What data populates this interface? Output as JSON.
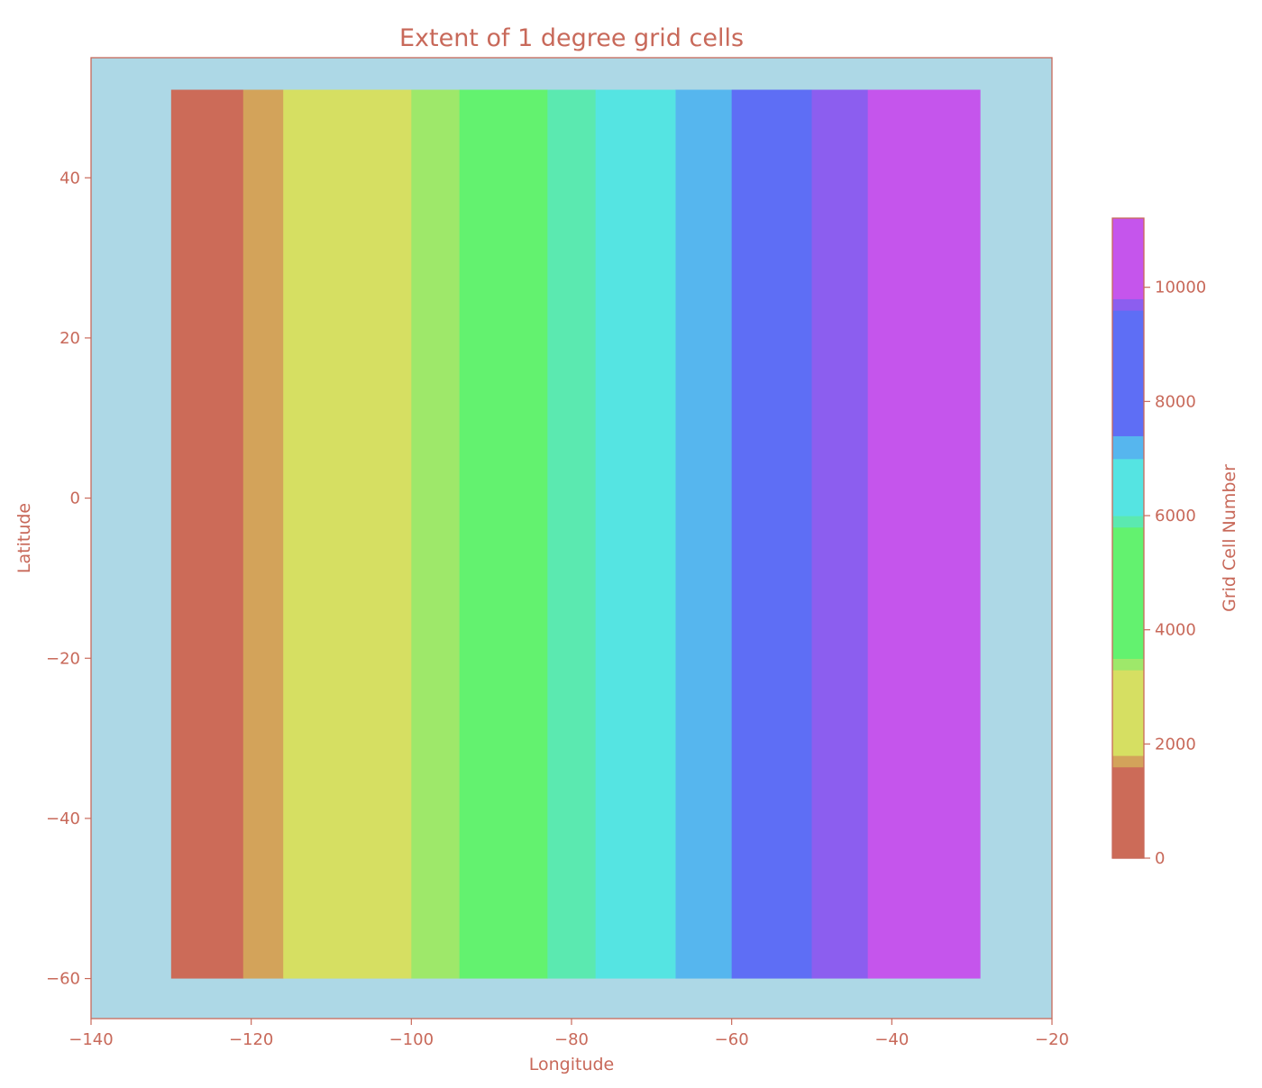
{
  "chart_data": {
    "type": "heatmap",
    "title": "Extent of 1 degree grid cells",
    "xlabel": "Longitude",
    "ylabel": "Latitude",
    "xlim": [
      -140,
      -20
    ],
    "ylim": [
      -65,
      55
    ],
    "xticks": [
      -140,
      -120,
      -100,
      -80,
      -60,
      -40,
      -20
    ],
    "yticks": [
      -60,
      -40,
      -20,
      0,
      20,
      40
    ],
    "xtick_labels": [
      "−140",
      "−120",
      "−100",
      "−80",
      "−60",
      "−40",
      "−20"
    ],
    "ytick_labels": [
      "−60",
      "−40",
      "−20",
      "0",
      "20",
      "40"
    ],
    "grid": false,
    "background_color": "#add8e6",
    "text_color": "#c8695a",
    "grid_extent": {
      "lon_min": -130,
      "lon_max": -29,
      "lat_min": -60,
      "lat_max": 51
    },
    "cells_per_degree_lon": 111,
    "value_range": [
      0,
      11211
    ],
    "colorbar": {
      "label": "Grid Cell Number",
      "ticks": [
        0,
        2000,
        4000,
        6000,
        8000,
        10000
      ],
      "tick_labels": [
        "0",
        "2000",
        "4000",
        "6000",
        "8000",
        "10000"
      ],
      "vmin": 0,
      "vmax": 11211
    },
    "color_bands": [
      {
        "lon_min": -130,
        "lon_max": -121,
        "value_min": 0,
        "value_max": 1000,
        "color": "#cc6b58"
      },
      {
        "lon_min": -121,
        "lon_max": -116,
        "value_min": 1000,
        "value_max": 1550,
        "color": "#d3a35a"
      },
      {
        "lon_min": -116,
        "lon_max": -100,
        "value_min": 1550,
        "value_max": 3330,
        "color": "#d6df62"
      },
      {
        "lon_min": -100,
        "lon_max": -94,
        "value_min": 3330,
        "value_max": 4000,
        "color": "#9ee86a"
      },
      {
        "lon_min": -94,
        "lon_max": -83,
        "value_min": 4000,
        "value_max": 5220,
        "color": "#63f26f"
      },
      {
        "lon_min": -83,
        "lon_max": -77,
        "value_min": 5220,
        "value_max": 5880,
        "color": "#5be9b0"
      },
      {
        "lon_min": -77,
        "lon_max": -67,
        "value_min": 5880,
        "value_max": 7000,
        "color": "#55e4e2"
      },
      {
        "lon_min": -67,
        "lon_max": -60,
        "value_min": 7000,
        "value_max": 7770,
        "color": "#56b6ee"
      },
      {
        "lon_min": -60,
        "lon_max": -50,
        "value_min": 7770,
        "value_max": 8880,
        "color": "#5e6ef5"
      },
      {
        "lon_min": -50,
        "lon_max": -43,
        "value_min": 8880,
        "value_max": 9650,
        "color": "#8c5eef"
      },
      {
        "lon_min": -43,
        "lon_max": -29,
        "value_min": 9650,
        "value_max": 11211,
        "color": "#c555ec"
      }
    ],
    "colorbar_bands": [
      {
        "value_min": 0,
        "value_max": 1600,
        "color": "#cc6b58"
      },
      {
        "value_min": 1600,
        "value_max": 1800,
        "color": "#d3a35a"
      },
      {
        "value_min": 1800,
        "value_max": 3300,
        "color": "#d6df62"
      },
      {
        "value_min": 3300,
        "value_max": 3500,
        "color": "#9ee86a"
      },
      {
        "value_min": 3500,
        "value_max": 5800,
        "color": "#63f26f"
      },
      {
        "value_min": 5800,
        "value_max": 6000,
        "color": "#5be9b0"
      },
      {
        "value_min": 6000,
        "value_max": 7000,
        "color": "#55e4e2"
      },
      {
        "value_min": 7000,
        "value_max": 7400,
        "color": "#56b6ee"
      },
      {
        "value_min": 7400,
        "value_max": 9600,
        "color": "#5e6ef5"
      },
      {
        "value_min": 9600,
        "value_max": 9800,
        "color": "#8c5eef"
      },
      {
        "value_min": 9800,
        "value_max": 11211,
        "color": "#c555ec"
      }
    ]
  }
}
